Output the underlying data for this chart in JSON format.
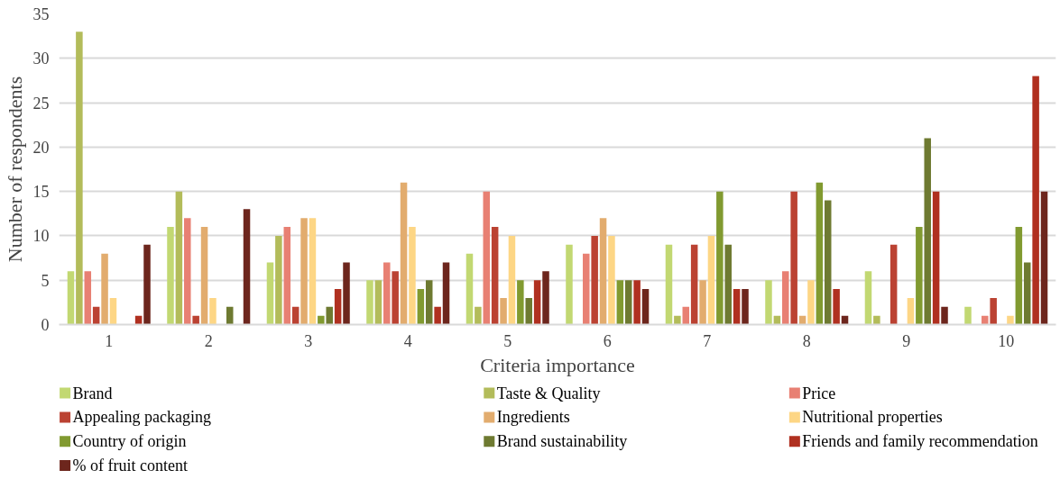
{
  "chart_data": {
    "type": "bar",
    "xlabel": "Criteria importance",
    "ylabel": "Number of respondents",
    "categories": [
      "1",
      "2",
      "3",
      "4",
      "5",
      "6",
      "7",
      "8",
      "9",
      "10"
    ],
    "ylim": [
      0,
      35
    ],
    "yticks": [
      0,
      5,
      10,
      15,
      20,
      25,
      30,
      35
    ],
    "grid": "y",
    "legend": "bottom",
    "series": [
      {
        "name": "Brand",
        "color": "#c2d872",
        "values": [
          6,
          11,
          7,
          5,
          8,
          9,
          9,
          5,
          6,
          2
        ]
      },
      {
        "name": "Taste & Quality",
        "color": "#b3bc5a",
        "values": [
          33,
          15,
          10,
          5,
          2,
          0,
          1,
          1,
          1,
          0
        ]
      },
      {
        "name": "Price",
        "color": "#e88073",
        "values": [
          6,
          12,
          11,
          7,
          15,
          8,
          2,
          6,
          0,
          1
        ]
      },
      {
        "name": "Appealing packaging",
        "color": "#bb4232",
        "values": [
          2,
          1,
          2,
          6,
          11,
          10,
          9,
          15,
          9,
          3
        ]
      },
      {
        "name": "Ingredients",
        "color": "#e2ac6e",
        "values": [
          8,
          11,
          12,
          16,
          3,
          12,
          5,
          1,
          0,
          0
        ]
      },
      {
        "name": "Nutritional properties",
        "color": "#fdd685",
        "values": [
          3,
          3,
          12,
          11,
          10,
          10,
          10,
          5,
          3,
          1
        ]
      },
      {
        "name": "Country of origin",
        "color": "#819a30",
        "values": [
          0,
          0,
          1,
          4,
          5,
          5,
          15,
          16,
          11,
          11
        ]
      },
      {
        "name": "Brand sustainability",
        "color": "#6e7a31",
        "values": [
          0,
          2,
          2,
          5,
          3,
          5,
          9,
          14,
          21,
          7
        ]
      },
      {
        "name": "Friends and family recommendation",
        "color": "#b03020",
        "values": [
          1,
          0,
          4,
          2,
          5,
          5,
          4,
          4,
          15,
          28
        ]
      },
      {
        "name": "% of fruit content",
        "color": "#6d261d",
        "values": [
          9,
          13,
          7,
          7,
          6,
          4,
          4,
          1,
          2,
          15
        ]
      }
    ]
  }
}
